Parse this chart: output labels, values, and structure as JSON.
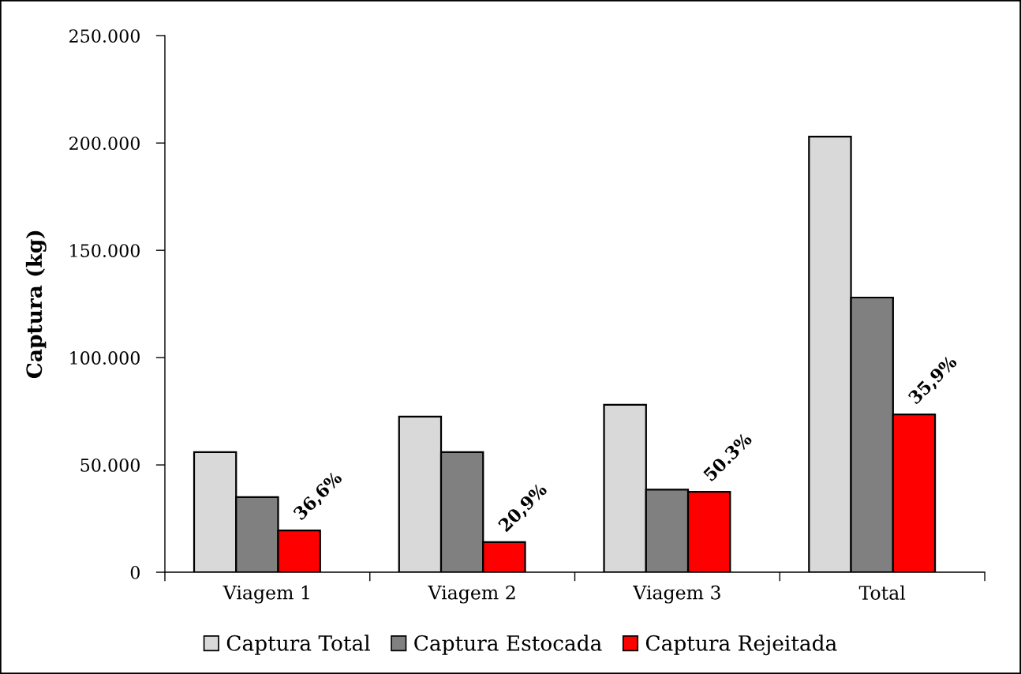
{
  "chart_data": {
    "type": "bar",
    "ylabel": "Captura (kg)",
    "categories": [
      "Viagem 1",
      "Viagem 2",
      "Viagem 3",
      "Total"
    ],
    "series": [
      {
        "name": "Captura Total",
        "color": "#d9d9d9",
        "values": [
          56000,
          72500,
          78000,
          203000
        ]
      },
      {
        "name": "Captura Estocada",
        "color": "#808080",
        "values": [
          35000,
          56000,
          38500,
          128000
        ]
      },
      {
        "name": "Captura Rejeitada",
        "color": "#ff0000",
        "values": [
          19500,
          14000,
          37500,
          73500
        ]
      }
    ],
    "annotations": [
      "36,6%",
      "20,9%",
      "50.3%",
      "35,9%"
    ],
    "ylim": [
      0,
      250000
    ],
    "yticks": [
      0,
      {
        "value": 50000,
        "label": "50.000"
      },
      {
        "value": 100000,
        "label": "100.000"
      },
      {
        "value": 150000,
        "label": "150.000"
      },
      {
        "value": 200000,
        "label": "200.000"
      },
      {
        "value": 250000,
        "label": "250.000"
      }
    ],
    "legend": "bottom"
  }
}
